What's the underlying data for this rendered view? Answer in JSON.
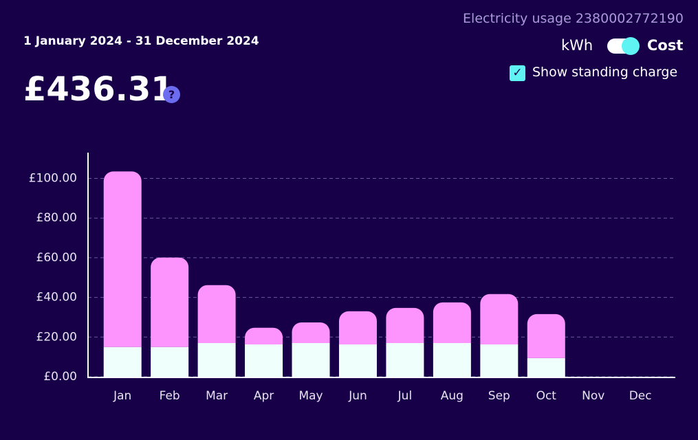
{
  "header": {
    "account": "Electricity usage 2380002772190",
    "period": "1 January 2024 - 31 December 2024",
    "total": "£436.31",
    "help": "?"
  },
  "controls": {
    "unit_off": "kWh",
    "unit_on": "Cost",
    "checkbox": "Show standing charge"
  },
  "chart_data": {
    "type": "bar",
    "stacked": true,
    "categories": [
      "Jan",
      "Feb",
      "Mar",
      "Apr",
      "May",
      "Jun",
      "Jul",
      "Aug",
      "Sep",
      "Oct",
      "Nov",
      "Dec"
    ],
    "series": [
      {
        "color": "#effffb",
        "values": [
          15,
          15,
          17,
          16.3,
          17,
          16.3,
          17,
          17,
          16.3,
          9.4,
          null,
          null
        ]
      },
      {
        "color": "#fd94fd",
        "values": [
          88.5,
          45.1,
          29.2,
          8.4,
          10.4,
          16.7,
          17.7,
          20.5,
          25.4,
          22.2,
          null,
          null
        ]
      }
    ],
    "ylim": [
      0,
      113
    ],
    "yticks": [
      {
        "value": 0,
        "label": "£0.00"
      },
      {
        "value": 20,
        "label": "£20.00"
      },
      {
        "value": 40,
        "label": "£40.00"
      },
      {
        "value": 60,
        "label": "£60.00"
      },
      {
        "value": 80,
        "label": "£80.00"
      },
      {
        "value": 100,
        "label": "£100.00"
      }
    ],
    "grid": true
  }
}
